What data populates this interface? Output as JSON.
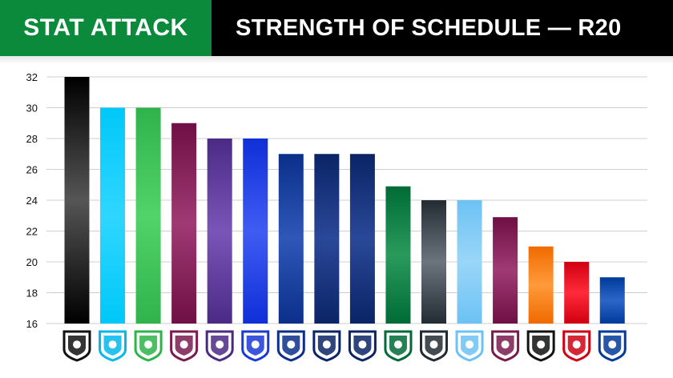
{
  "header": {
    "section_label": "STAT ATTACK",
    "title": "STRENGTH OF SCHEDULE — R20",
    "section_color": "#0b8a3c",
    "title_bg": "#000000"
  },
  "chart_data": {
    "type": "bar",
    "title": "STRENGTH OF SCHEDULE — R20",
    "xlabel": "",
    "ylabel": "",
    "ylim": [
      16,
      32
    ],
    "yticks": [
      16,
      18,
      20,
      22,
      24,
      26,
      28,
      30,
      32
    ],
    "grid": true,
    "categories": [
      "team-logo-1",
      "team-logo-2",
      "team-logo-3",
      "team-logo-4",
      "team-logo-5",
      "team-logo-6",
      "team-logo-7",
      "team-logo-8",
      "team-logo-9",
      "team-logo-10",
      "team-logo-11",
      "team-logo-12",
      "team-logo-13",
      "team-logo-14",
      "team-logo-15",
      "team-logo-16"
    ],
    "values": [
      32,
      30,
      30,
      29,
      28,
      28,
      27,
      27,
      27,
      24.9,
      24,
      24,
      22.9,
      21,
      20,
      19
    ],
    "bar_colors": [
      [
        "#000000",
        "#555555"
      ],
      [
        "#00c8f8",
        "#2fd6ff"
      ],
      [
        "#2fb34a",
        "#52d36a"
      ],
      [
        "#6e0f45",
        "#a03a74"
      ],
      [
        "#4b2a86",
        "#7a55b8"
      ],
      [
        "#0f2fd8",
        "#3f5cf2"
      ],
      [
        "#0b2f8a",
        "#2e57b8"
      ],
      [
        "#0b2466",
        "#2a4898"
      ],
      [
        "#0b2466",
        "#2a4898"
      ],
      [
        "#006b36",
        "#2a9a5c"
      ],
      [
        "#232b33",
        "#6c757d"
      ],
      [
        "#6cc2f4",
        "#9ad6f8"
      ],
      [
        "#6e0f45",
        "#a03a74"
      ],
      [
        "#f06a00",
        "#ff9a3a"
      ],
      [
        "#d00010",
        "#ff2a3a"
      ],
      [
        "#003a9a",
        "#2c66c8"
      ]
    ],
    "logo_colors": [
      "#111111",
      "#00b8ee",
      "#2fb34a",
      "#7a1a4d",
      "#4b2a86",
      "#1a3ad8",
      "#0b2f8a",
      "#0b2466",
      "#0b2466",
      "#006b36",
      "#232b33",
      "#6cc2f4",
      "#7a1a4d",
      "#111111",
      "#d00010",
      "#003a9a"
    ]
  }
}
